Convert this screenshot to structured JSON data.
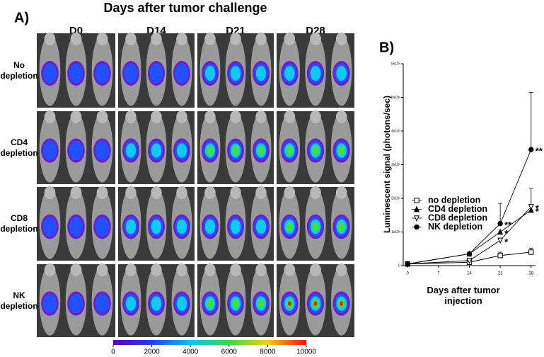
{
  "panel_a": {
    "label": "A)",
    "title": "Days after tumor challenge",
    "columns": [
      "D0",
      "D14",
      "D21",
      "D28"
    ],
    "rows": [
      "No depletion",
      "CD4 depletion",
      "CD8 depletion",
      "NK depletion"
    ],
    "colorbar": {
      "lim": [
        0,
        10000
      ],
      "ticks": [
        0,
        2000,
        4000,
        6000,
        8000,
        10000
      ]
    }
  },
  "chart_data": {
    "type": "line",
    "label": "B)",
    "xlabel": "Days after tumor injection",
    "ylabel": "Luminescent signal (photons/sec)",
    "x": [
      0,
      14,
      21,
      28
    ],
    "xlim": [
      -1,
      29
    ],
    "xticks": [
      0,
      7,
      14,
      21,
      28
    ],
    "ylim": [
      0,
      6000000
    ],
    "yticks": [
      0,
      {
        "value": 1000000,
        "label": "1x10⁶"
      },
      {
        "value": 2000000,
        "label": "2x10⁶"
      },
      {
        "value": 3000000,
        "label": "3x10⁶"
      },
      {
        "value": 4000000,
        "label": "4x10⁶"
      },
      {
        "value": 5000000,
        "label": "5x10⁶"
      },
      {
        "value": 6000000,
        "label": "6x10⁶"
      }
    ],
    "legend": "upper-left",
    "series": [
      {
        "name": "no depletion",
        "color": "#000000",
        "marker": "open-square",
        "values": [
          50000,
          100000,
          300000,
          400000
        ],
        "errors": [
          null,
          null,
          100000,
          120000
        ],
        "significance": [
          null,
          null,
          null,
          null
        ]
      },
      {
        "name": "CD4 depletion",
        "color": "#000000",
        "marker": "filled-triangle",
        "values": [
          50000,
          350000,
          1000000,
          1650000
        ],
        "errors": [
          null,
          null,
          null,
          null
        ],
        "significance": [
          null,
          null,
          "*",
          "*"
        ]
      },
      {
        "name": "CD8 depletion",
        "color": "#000000",
        "marker": "open-down-triangle",
        "values": [
          50000,
          150000,
          750000,
          1750000
        ],
        "errors": [
          null,
          null,
          null,
          550000
        ],
        "significance": [
          null,
          null,
          "*",
          "*"
        ]
      },
      {
        "name": "NK depletion",
        "color": "#000000",
        "marker": "filled-circle",
        "values": [
          50000,
          350000,
          1250000,
          3450000
        ],
        "errors": [
          null,
          null,
          600000,
          1700000
        ],
        "significance": [
          null,
          null,
          "**",
          "**"
        ]
      }
    ]
  }
}
